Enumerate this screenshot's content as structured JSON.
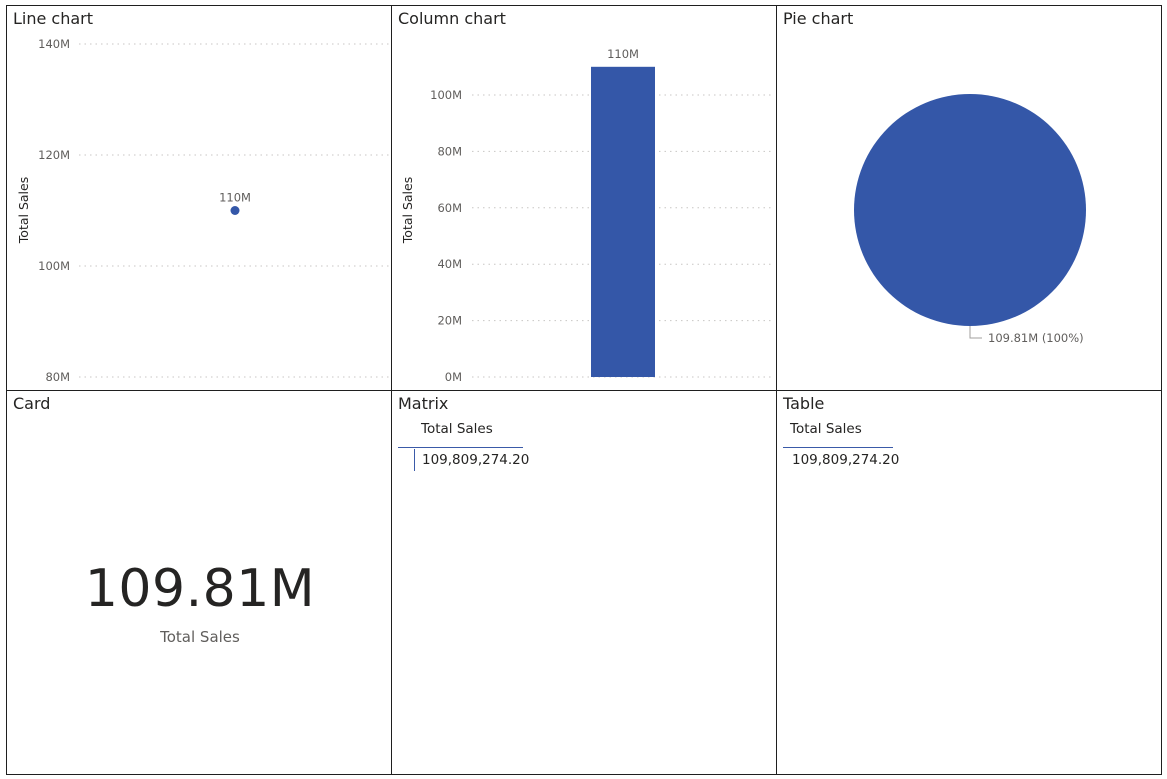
{
  "panels": {
    "line": {
      "title": "Line chart"
    },
    "column": {
      "title": "Column chart"
    },
    "pie": {
      "title": "Pie chart"
    },
    "card": {
      "title": "Card",
      "value": "109.81M",
      "label": "Total Sales"
    },
    "matrix": {
      "title": "Matrix",
      "header": "Total Sales",
      "value": "109,809,274.20"
    },
    "table": {
      "title": "Table",
      "header": "Total Sales",
      "value": "109,809,274.20"
    }
  },
  "colors": {
    "accent": "#3457a8",
    "grid": "#c8c6c4",
    "border": "#1f1f1f"
  },
  "chart_data": [
    {
      "type": "line",
      "ylabel": "Total Sales",
      "ylim": [
        80,
        140
      ],
      "yticks": [
        "80M",
        "100M",
        "120M",
        "140M"
      ],
      "ytick_values": [
        80,
        100,
        120,
        140
      ],
      "points": [
        {
          "y": 110,
          "label": "110M"
        }
      ],
      "grid": true
    },
    {
      "type": "bar",
      "ylabel": "Total Sales",
      "ylim": [
        0,
        100
      ],
      "yticks": [
        "0M",
        "20M",
        "40M",
        "60M",
        "80M",
        "100M"
      ],
      "ytick_values": [
        0,
        20,
        40,
        60,
        80,
        100
      ],
      "values": [
        110
      ],
      "data_labels": [
        "110M"
      ],
      "grid": true
    },
    {
      "type": "pie",
      "values": [
        109.81
      ],
      "data_labels": [
        "109.81M (100%)"
      ]
    }
  ]
}
